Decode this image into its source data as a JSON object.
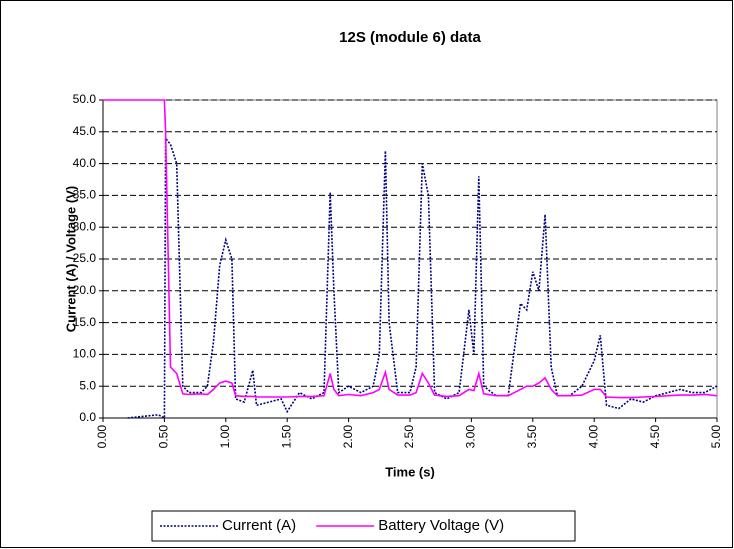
{
  "chart_data": {
    "type": "line",
    "title": "12S (module 6) data",
    "x_label": "Time (s)",
    "y_label": "Current (A) / Voltage (V)",
    "x": [
      0.0,
      0.2,
      0.45,
      0.5,
      0.51,
      0.55,
      0.6,
      0.65,
      0.7,
      0.8,
      0.85,
      0.9,
      0.95,
      1.0,
      1.05,
      1.08,
      1.15,
      1.22,
      1.25,
      1.35,
      1.45,
      1.5,
      1.6,
      1.7,
      1.8,
      1.85,
      1.88,
      1.92,
      2.0,
      2.1,
      2.2,
      2.25,
      2.3,
      2.33,
      2.4,
      2.5,
      2.55,
      2.6,
      2.65,
      2.7,
      2.8,
      2.9,
      2.98,
      3.02,
      3.06,
      3.1,
      3.2,
      3.3,
      3.4,
      3.45,
      3.5,
      3.55,
      3.6,
      3.65,
      3.7,
      3.8,
      3.9,
      4.0,
      4.05,
      4.1,
      4.2,
      4.3,
      4.4,
      4.5,
      4.6,
      4.7,
      4.8,
      4.9,
      5.0
    ],
    "series": [
      {
        "name": "Current (A)",
        "color": "#000080",
        "dash": "dotted",
        "values": [
          null,
          0,
          0.5,
          0,
          44,
          43,
          40,
          5,
          4,
          4,
          5,
          12,
          24,
          28,
          25,
          3,
          2.5,
          7.5,
          2,
          2.5,
          3,
          1,
          4,
          3,
          4,
          35.5,
          20,
          4,
          5,
          4,
          5,
          10,
          42,
          15,
          4,
          4,
          8,
          40,
          35,
          4,
          3,
          4,
          17,
          10,
          38,
          5,
          3.5,
          3.5,
          18,
          17,
          23,
          20,
          32,
          8,
          3.5,
          3.5,
          5,
          9,
          13,
          2,
          1.5,
          3,
          2.5,
          3.5,
          4,
          4.5,
          4,
          4,
          5
        ]
      },
      {
        "name": "Battery Voltage (V)",
        "color": "#ff00ff",
        "dash": "solid",
        "values": [
          50,
          50,
          50,
          50,
          45,
          8,
          7,
          3.8,
          3.7,
          3.8,
          3.7,
          4.5,
          5.5,
          5.8,
          5.5,
          3.5,
          3.4,
          3.4,
          3.3,
          3.3,
          3.3,
          3.3,
          3.4,
          3.4,
          3.5,
          7,
          4.5,
          3.5,
          3.7,
          3.5,
          4,
          4.5,
          7.2,
          4.5,
          3.6,
          3.6,
          4,
          7,
          5.5,
          3.6,
          3.4,
          3.5,
          4.5,
          4.3,
          7,
          3.8,
          3.5,
          3.5,
          4.5,
          5,
          5,
          5.5,
          6.3,
          4.5,
          3.5,
          3.5,
          3.6,
          4.5,
          4.5,
          3.3,
          3.2,
          3.2,
          3.3,
          3.4,
          3.5,
          3.6,
          3.6,
          3.7,
          3.5
        ]
      }
    ],
    "xlim": [
      0,
      5
    ],
    "xticks": [
      {
        "value": 0,
        "label": "0.00"
      },
      {
        "value": 0.5,
        "label": "0.50"
      },
      {
        "value": 1,
        "label": "1.00"
      },
      {
        "value": 1.5,
        "label": "1.50"
      },
      {
        "value": 2,
        "label": "2.00"
      },
      {
        "value": 2.5,
        "label": "2.50"
      },
      {
        "value": 3,
        "label": "3.00"
      },
      {
        "value": 3.5,
        "label": "3.50"
      },
      {
        "value": 4,
        "label": "4.00"
      },
      {
        "value": 4.5,
        "label": "4.50"
      },
      {
        "value": 5,
        "label": "5.00"
      }
    ],
    "ylim": [
      0,
      50
    ],
    "yticks": [
      {
        "value": 0,
        "label": "0.0"
      },
      {
        "value": 5,
        "label": "5.0"
      },
      {
        "value": 10,
        "label": "10.0"
      },
      {
        "value": 15,
        "label": "15.0"
      },
      {
        "value": 20,
        "label": "20.0"
      },
      {
        "value": 25,
        "label": "25.0"
      },
      {
        "value": 30,
        "label": "30.0"
      },
      {
        "value": 35,
        "label": "35.0"
      },
      {
        "value": 40,
        "label": "40.0"
      },
      {
        "value": 45,
        "label": "45.0"
      },
      {
        "value": 50,
        "label": "50.0"
      }
    ],
    "grid": true,
    "legend": "bottom"
  }
}
